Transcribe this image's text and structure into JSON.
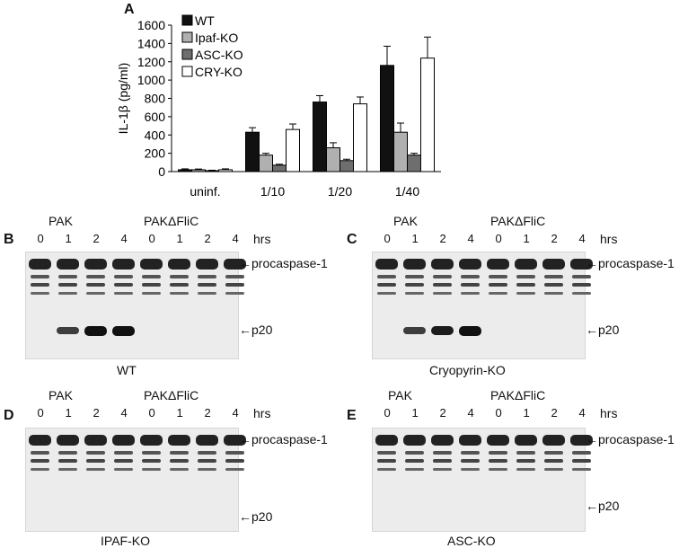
{
  "panel_a": {
    "letter": "A",
    "chart_data": {
      "type": "bar",
      "ylabel": "IL-1β (pg/ml)",
      "ylim": [
        0,
        1600
      ],
      "yticks": [
        0,
        200,
        400,
        600,
        800,
        1000,
        1200,
        1400,
        1600
      ],
      "categories": [
        "uninf.",
        "1/10",
        "1/20",
        "1/40"
      ],
      "series": [
        {
          "name": "WT",
          "color": "#111111",
          "values": [
            20,
            430,
            760,
            1160
          ],
          "errors": [
            10,
            50,
            70,
            210
          ]
        },
        {
          "name": "Ipaf-KO",
          "color": "#b0b0b0",
          "values": [
            20,
            180,
            260,
            430
          ],
          "errors": [
            8,
            20,
            55,
            100
          ]
        },
        {
          "name": "ASC-KO",
          "color": "#6e6e6e",
          "values": [
            10,
            70,
            120,
            180
          ],
          "errors": [
            5,
            10,
            15,
            20
          ]
        },
        {
          "name": "CRY-KO",
          "color": "#ffffff",
          "values": [
            20,
            460,
            740,
            1240
          ],
          "errors": [
            10,
            60,
            75,
            230
          ]
        }
      ],
      "legend": "top-left"
    }
  },
  "blots": [
    {
      "letter": "B",
      "caption": "WT",
      "group1": "PAK",
      "group2": "PAKΔFliC",
      "lanes": [
        "0",
        "1",
        "2",
        "4",
        "0",
        "1",
        "2",
        "4"
      ],
      "unit": "hrs",
      "band1": "procaspase-1",
      "band2": "p20",
      "p20": [
        0,
        0.6,
        1,
        1,
        0,
        0,
        0,
        0
      ]
    },
    {
      "letter": "C",
      "caption": "Cryopyrin-KO",
      "group1": "PAK",
      "group2": "PAKΔFliC",
      "lanes": [
        "0",
        "1",
        "2",
        "4",
        "0",
        "1",
        "2",
        "4"
      ],
      "unit": "hrs",
      "band1": "procaspase-1",
      "band2": "p20",
      "p20": [
        0,
        0.6,
        0.9,
        1,
        0,
        0,
        0,
        0
      ]
    },
    {
      "letter": "D",
      "caption": "IPAF-KO",
      "group1": "PAK",
      "group2": "PAKΔFliC",
      "lanes": [
        "0",
        "1",
        "2",
        "4",
        "0",
        "1",
        "2",
        "4"
      ],
      "unit": "hrs",
      "band1": "procaspase-1",
      "band2": "p20",
      "p20": [
        0,
        0,
        0,
        0,
        0,
        0,
        0,
        0
      ]
    },
    {
      "letter": "E",
      "caption": "ASC-KO",
      "group1": "PAK",
      "group2": "PAKΔFliC",
      "lanes": [
        "0",
        "1",
        "2",
        "4",
        "0",
        "1",
        "2",
        "4"
      ],
      "unit": "hrs",
      "band1": "procaspase-1",
      "band2": "p20",
      "p20": [
        0,
        0,
        0,
        0,
        0,
        0,
        0,
        0
      ]
    }
  ]
}
